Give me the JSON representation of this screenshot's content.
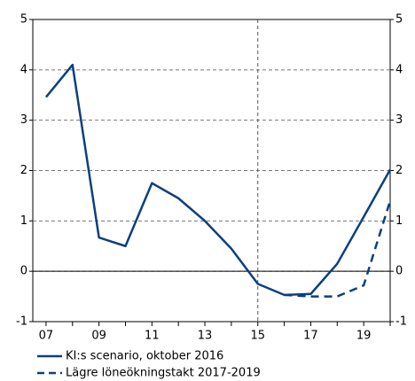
{
  "chart_data": {
    "type": "line",
    "categories": [
      "07",
      null,
      "09",
      null,
      "11",
      null,
      "13",
      null,
      "15",
      null,
      "17",
      null,
      "19",
      null
    ],
    "series": [
      {
        "name": "KI:s scenario, oktober 2016",
        "color": "#0d3f80",
        "dash": false,
        "values": [
          3.46,
          4.1,
          0.67,
          0.5,
          1.75,
          1.45,
          1.0,
          0.45,
          -0.25,
          -0.47,
          -0.45,
          0.15,
          1.08,
          2.02
        ]
      },
      {
        "name": "Lägre löneökningstakt 2017-2019",
        "color": "#0d3f80",
        "dash": true,
        "values": [
          null,
          null,
          null,
          null,
          null,
          null,
          null,
          null,
          null,
          -0.47,
          -0.5,
          -0.5,
          -0.28,
          1.4
        ]
      }
    ],
    "ylim": [
      -1,
      5
    ],
    "yticks": [
      -1,
      0,
      1,
      2,
      3,
      4,
      5
    ],
    "grid": true,
    "vline": 8,
    "legend": "bottom"
  }
}
